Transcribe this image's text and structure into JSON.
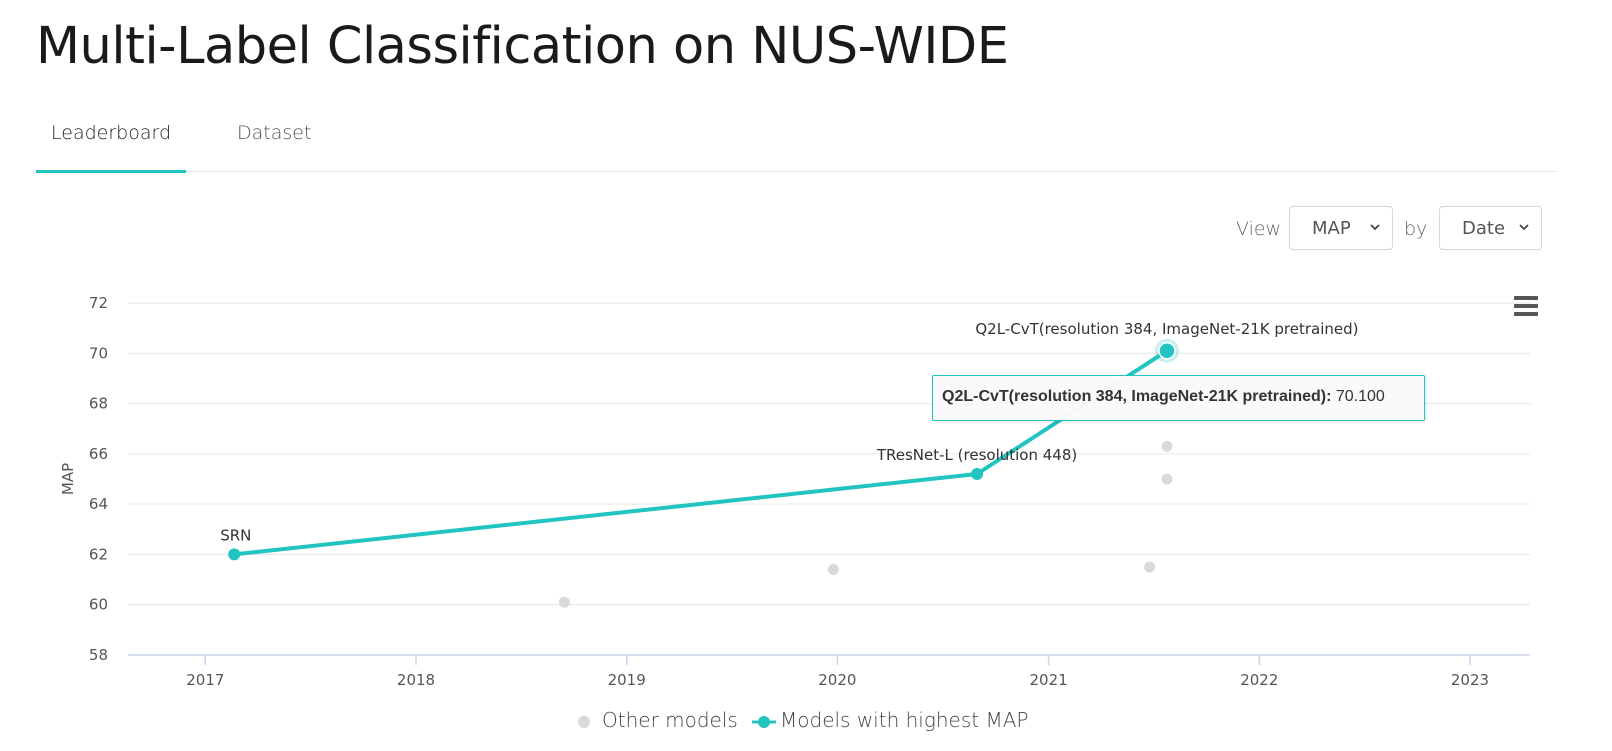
{
  "page": {
    "title": "Multi-Label Classification on NUS-WIDE"
  },
  "tabs": [
    {
      "label": "Leaderboard",
      "active": true
    },
    {
      "label": "Dataset",
      "active": false
    }
  ],
  "controls": {
    "view_label": "View",
    "metric_selected": "MAP",
    "by_label": "by",
    "sort_selected": "Date"
  },
  "colors": {
    "accent": "#21c4c0",
    "other": "#d9d9d9",
    "grid": "#e6e6e6"
  },
  "icons": {
    "menu": "hamburger-menu-icon",
    "chevron": "chevron-down-icon"
  },
  "tooltip": {
    "model": "Q2L-CvT(resolution 384, ImageNet-21K pretrained)",
    "value": "70.100"
  },
  "legend": {
    "other": "Other models",
    "best": "Models with highest MAP"
  },
  "chart_data": {
    "type": "scatter",
    "ylabel": "MAP",
    "xlabel": "",
    "ylim": [
      58,
      72
    ],
    "yticks": [
      58,
      60,
      62,
      64,
      66,
      68,
      70,
      72
    ],
    "xticks": [
      "2017",
      "2018",
      "2019",
      "2020",
      "2021",
      "2022",
      "2023"
    ],
    "xlim": [
      "2016-08-20",
      "2023-04-15"
    ],
    "grid": true,
    "legend_position": "bottom-center",
    "series": [
      {
        "name": "Models with highest MAP",
        "mode": "line+markers",
        "points": [
          {
            "date": "2017-02-20",
            "value": 62.0,
            "label": "SRN"
          },
          {
            "date": "2020-08-30",
            "value": 65.2,
            "label": "TResNet-L (resolution 448)"
          },
          {
            "date": "2021-07-25",
            "value": 70.1,
            "label": "Q2L-CvT(resolution 384, ImageNet-21K pretrained)"
          }
        ]
      },
      {
        "name": "Other models",
        "mode": "markers",
        "points": [
          {
            "date": "2018-09-15",
            "value": 60.1
          },
          {
            "date": "2019-12-25",
            "value": 61.4
          },
          {
            "date": "2021-06-25",
            "value": 61.5
          },
          {
            "date": "2021-07-25",
            "value": 65.0
          },
          {
            "date": "2021-07-25",
            "value": 66.3
          }
        ]
      }
    ]
  }
}
